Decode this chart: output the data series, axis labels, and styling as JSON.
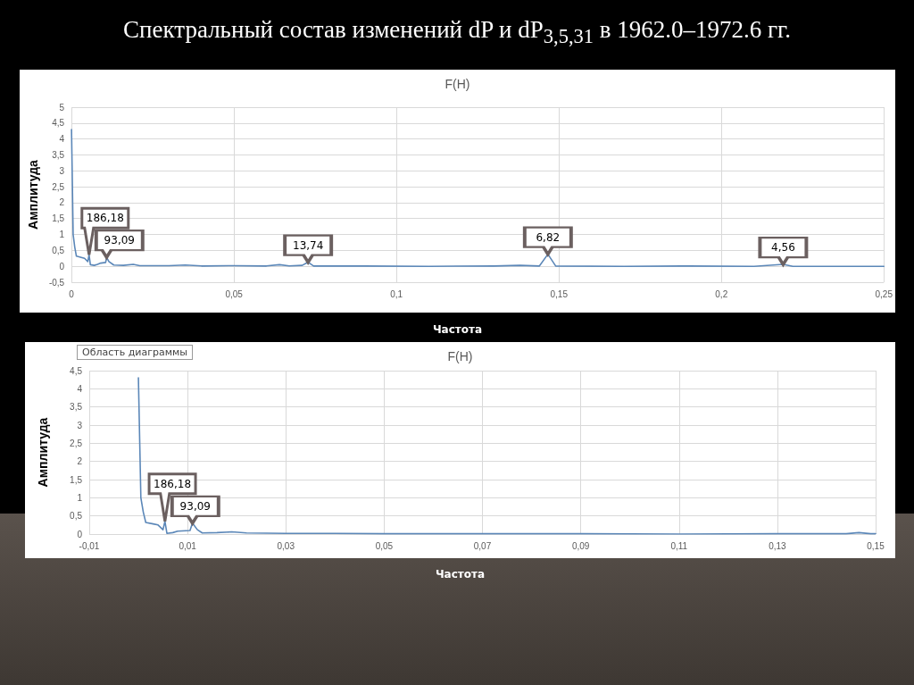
{
  "chart_data": [
    {
      "type": "line",
      "title": "F(H)",
      "xlabel": "Частота",
      "ylabel": "Амплитуда",
      "grid": true,
      "marker": "none",
      "line_style": "solid",
      "annotations": [
        "Спектральный состав изменений dP и dP$_{3,5,31}$ в 1962.0–1972.6 гг.",
        {
          "text": "186,18",
          "x": 0.0054,
          "y": 0.36
        },
        {
          "text": "93,09",
          "x": 0.0108,
          "y": 0.28
        },
        {
          "text": "13,74",
          "x": 0.0728,
          "y": 0.13
        },
        {
          "text": "6,82",
          "x": 0.1466,
          "y": 0.38
        },
        {
          "text": "4,56",
          "x": 0.219,
          "y": 0.06
        }
      ],
      "xlim": [
        0,
        0.25
      ],
      "xticks": [
        0,
        {
          "value": 0.05,
          "label": "0,05"
        },
        {
          "value": 0.1,
          "label": "0,1"
        },
        {
          "value": 0.15,
          "label": "0,15"
        },
        {
          "value": 0.2,
          "label": "0,2"
        },
        {
          "value": 0.25,
          "label": "0,25"
        }
      ],
      "ylim": [
        -0.5,
        5
      ],
      "yticks": [
        {
          "value": -0.5,
          "label": "-0,5"
        },
        0,
        {
          "value": 0.5,
          "label": "0,5"
        },
        1,
        {
          "value": 1.5,
          "label": "1,5"
        },
        2,
        {
          "value": 2.5,
          "label": "2,5"
        },
        3,
        {
          "value": 3.5,
          "label": "3,5"
        },
        4,
        {
          "value": 4.5,
          "label": "4,5"
        },
        5
      ],
      "series": [
        {
          "color": "#5b87b8",
          "x": [
            0,
            0.0005,
            0.001,
            0.0015,
            0.003,
            0.004,
            0.005,
            0.0054,
            0.0058,
            0.007,
            0.008,
            0.009,
            0.0105,
            0.0108,
            0.0115,
            0.013,
            0.016,
            0.019,
            0.021,
            0.03,
            0.035,
            0.04,
            0.05,
            0.06,
            0.064,
            0.067,
            0.071,
            0.0728,
            0.0745,
            0.09,
            0.11,
            0.13,
            0.138,
            0.144,
            0.1466,
            0.149,
            0.17,
            0.19,
            0.21,
            0.219,
            0.222,
            0.25
          ],
          "values": [
            4.3,
            1.0,
            0.6,
            0.32,
            0.28,
            0.25,
            0.15,
            0.36,
            0.05,
            0.03,
            0.06,
            0.1,
            0.12,
            0.28,
            0.15,
            0.04,
            0.03,
            0.06,
            0.02,
            0.02,
            0.04,
            0.01,
            0.02,
            0.01,
            0.05,
            0.01,
            0.03,
            0.13,
            0.01,
            0.01,
            0,
            0.01,
            0.03,
            0.01,
            0.38,
            0.01,
            0,
            0.01,
            0,
            0.06,
            0,
            0
          ]
        }
      ]
    },
    {
      "type": "line",
      "title": "F(H)",
      "xlabel": "Частота",
      "ylabel": "Амплитуда",
      "grid": true,
      "marker": "none",
      "line_style": "solid",
      "annotations": [
        "Область диаграммы",
        {
          "text": "186,18",
          "x": 0.0054,
          "y": 0.35
        },
        {
          "text": "93,09",
          "x": 0.011,
          "y": 0.3
        }
      ],
      "xlim": [
        -0.01,
        0.15
      ],
      "xticks": [
        {
          "value": -0.01,
          "label": "-0,01"
        },
        {
          "value": 0.01,
          "label": "0,01"
        },
        {
          "value": 0.03,
          "label": "0,03"
        },
        {
          "value": 0.05,
          "label": "0,05"
        },
        {
          "value": 0.07,
          "label": "0,07"
        },
        {
          "value": 0.09,
          "label": "0,09"
        },
        {
          "value": 0.11,
          "label": "0,11"
        },
        {
          "value": 0.13,
          "label": "0,13"
        },
        {
          "value": 0.15,
          "label": "0,15"
        }
      ],
      "ylim": [
        0,
        4.5
      ],
      "yticks": [
        0,
        {
          "value": 0.5,
          "label": "0,5"
        },
        1,
        {
          "value": 1.5,
          "label": "1,5"
        },
        2,
        {
          "value": 2.5,
          "label": "2,5"
        },
        3,
        {
          "value": 3.5,
          "label": "3,5"
        },
        4,
        {
          "value": 4.5,
          "label": "4,5"
        }
      ],
      "series": [
        {
          "color": "#5b87b8",
          "x": [
            0,
            0.0005,
            0.001,
            0.0015,
            0.003,
            0.004,
            0.005,
            0.0054,
            0.0058,
            0.007,
            0.008,
            0.0105,
            0.011,
            0.012,
            0.013,
            0.016,
            0.019,
            0.022,
            0.03,
            0.04,
            0.05,
            0.07,
            0.09,
            0.11,
            0.13,
            0.144,
            0.1466,
            0.149,
            0.15
          ],
          "values": [
            4.3,
            1.0,
            0.6,
            0.32,
            0.28,
            0.25,
            0.12,
            0.35,
            0.02,
            0.04,
            0.08,
            0.1,
            0.3,
            0.12,
            0.03,
            0.04,
            0.06,
            0.03,
            0.02,
            0.02,
            0.01,
            0.01,
            0.01,
            0,
            0.01,
            0.01,
            0.04,
            0.01,
            0.01
          ]
        }
      ]
    }
  ]
}
